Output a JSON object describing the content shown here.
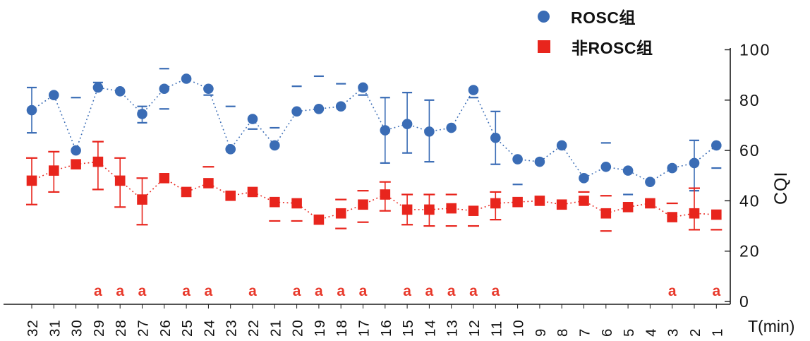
{
  "legend": {
    "rosc_label": "ROSC组",
    "non_rosc_label": "非ROSC组"
  },
  "axes": {
    "y_label": "CQI",
    "x_label": "T(min)",
    "y_ticks": [
      0,
      20,
      40,
      60,
      80,
      100
    ]
  },
  "colors": {
    "rosc": "#3a6cb5",
    "non_rosc": "#e8251d",
    "annotation": "#e8392b",
    "axis": "#1a1a1a",
    "text": "#111111"
  },
  "chart_data": {
    "type": "scatter",
    "title": "",
    "xlabel": "T(min)",
    "ylabel": "CQI",
    "ylim": [
      0,
      100
    ],
    "x_reversed": true,
    "grid": false,
    "legend_position": "top-right",
    "x": [
      32,
      31,
      30,
      29,
      28,
      27,
      26,
      25,
      24,
      23,
      22,
      21,
      20,
      19,
      18,
      17,
      16,
      15,
      14,
      13,
      12,
      11,
      10,
      9,
      8,
      7,
      6,
      5,
      4,
      3,
      2,
      1
    ],
    "series": [
      {
        "name": "ROSC组",
        "marker": "circle",
        "color": "#3a6cb5",
        "line_style": "dotted",
        "values": [
          76,
          82,
          60,
          85,
          83.5,
          74.5,
          84.5,
          88.5,
          84.5,
          60.5,
          72.5,
          62,
          75.5,
          76.5,
          77.5,
          85,
          68,
          70.5,
          67.5,
          69,
          84,
          65,
          56.5,
          55.5,
          62,
          49,
          53.5,
          52,
          47.5,
          53,
          55,
          62
        ],
        "err_hi": [
          9,
          0,
          21,
          2,
          0,
          3,
          8,
          0,
          0,
          17,
          0,
          7,
          10,
          13,
          9,
          0,
          13,
          12.5,
          12.5,
          0,
          0,
          10.5,
          0,
          0,
          0,
          0,
          9.5,
          0,
          0,
          0,
          9,
          0
        ],
        "err_lo": [
          9,
          0,
          0,
          0,
          0,
          3.5,
          8,
          0,
          2.5,
          0,
          4,
          0,
          0,
          0,
          0,
          3,
          13,
          11.5,
          12,
          0,
          3,
          10.5,
          10,
          0,
          0,
          0,
          0,
          9.5,
          0,
          0,
          11,
          9
        ],
        "err_line": [
          true,
          false,
          false,
          false,
          false,
          true,
          false,
          false,
          false,
          false,
          false,
          false,
          false,
          false,
          false,
          false,
          true,
          true,
          true,
          false,
          false,
          true,
          false,
          false,
          false,
          false,
          false,
          false,
          false,
          false,
          true,
          false
        ]
      },
      {
        "name": "非ROSC组",
        "marker": "square",
        "color": "#e8251d",
        "line_style": "dotted",
        "values": [
          48,
          52,
          54.5,
          55.5,
          48,
          40.5,
          49,
          43.5,
          47,
          42,
          43.5,
          39.5,
          39,
          32.5,
          35,
          38.5,
          42.5,
          36.5,
          36.5,
          37,
          36,
          39,
          39.5,
          40,
          38.5,
          40,
          35,
          37.5,
          39,
          33.5,
          35,
          34.5
        ],
        "err_hi": [
          9,
          7.5,
          0,
          8,
          9,
          8.5,
          0,
          0,
          6.5,
          0,
          0,
          0,
          0,
          0,
          5.5,
          5.5,
          5,
          6,
          6,
          5.5,
          0,
          4.5,
          0,
          0,
          0,
          3.5,
          7,
          0,
          0,
          5.5,
          10,
          0
        ],
        "err_lo": [
          9.5,
          8.5,
          0,
          11,
          10.5,
          10,
          0,
          0,
          0,
          0,
          0,
          7.5,
          7,
          0,
          6,
          7,
          6.5,
          6,
          6.5,
          7,
          6,
          6.5,
          0,
          0,
          0,
          0,
          7,
          0,
          0,
          0,
          6.5,
          6
        ],
        "err_line": [
          true,
          true,
          false,
          true,
          true,
          true,
          false,
          false,
          false,
          false,
          false,
          false,
          false,
          false,
          false,
          false,
          true,
          true,
          true,
          false,
          false,
          true,
          false,
          false,
          false,
          false,
          false,
          false,
          false,
          false,
          true,
          false
        ]
      }
    ],
    "annotations": {
      "label": "a",
      "x": [
        29,
        28,
        27,
        25,
        24,
        22,
        20,
        19,
        18,
        17,
        15,
        14,
        13,
        12,
        11,
        3,
        1
      ]
    }
  }
}
